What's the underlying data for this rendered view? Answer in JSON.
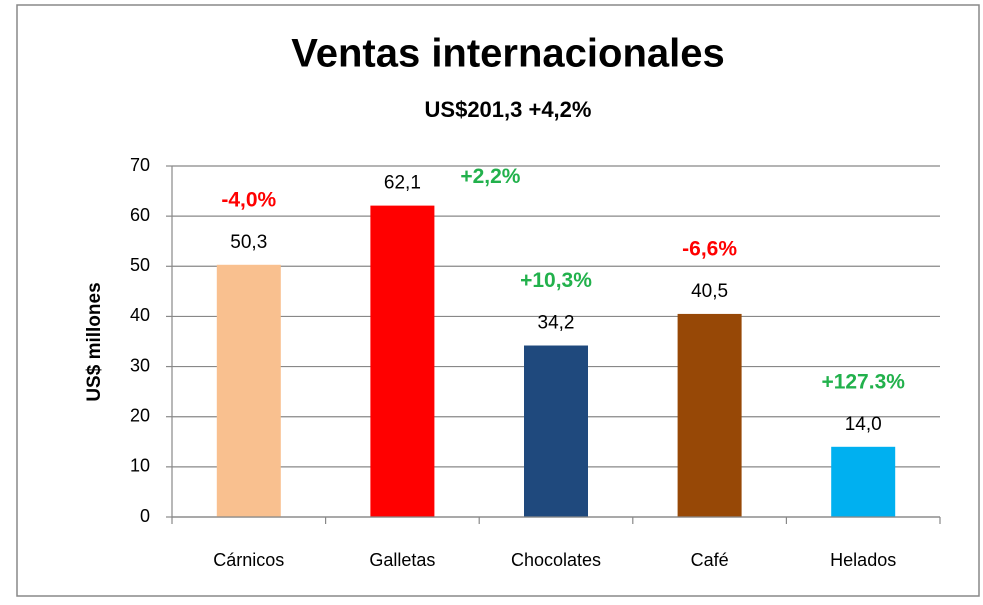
{
  "chart_data": {
    "type": "bar",
    "title": "Ventas internacionales",
    "subtitle": "US$201,3  +4,2%",
    "y_label": "US$ millones",
    "categories": [
      "Cárnicos",
      "Galletas",
      "Chocolates",
      "Café",
      "Helados"
    ],
    "values": [
      50.3,
      62.1,
      34.2,
      40.5,
      14.0
    ],
    "value_labels": [
      "50,3",
      "62,1",
      "34,2",
      "40,5",
      "14,0"
    ],
    "colors": [
      "#f9c08f",
      "#ff0000",
      "#1f497d",
      "#974806",
      "#00b0f0"
    ],
    "annotations": [
      "-4,0%",
      "+2,2%",
      "+10,3%",
      "-6,6%",
      "+127.3%"
    ],
    "annotation_colors": [
      "#ff0000",
      "#22b14c",
      "#22b14c",
      "#ff0000",
      "#22b14c"
    ],
    "ylim": [
      0,
      70
    ],
    "yticks": [
      0,
      10,
      20,
      30,
      40,
      50,
      60,
      70
    ],
    "grid": true
  }
}
